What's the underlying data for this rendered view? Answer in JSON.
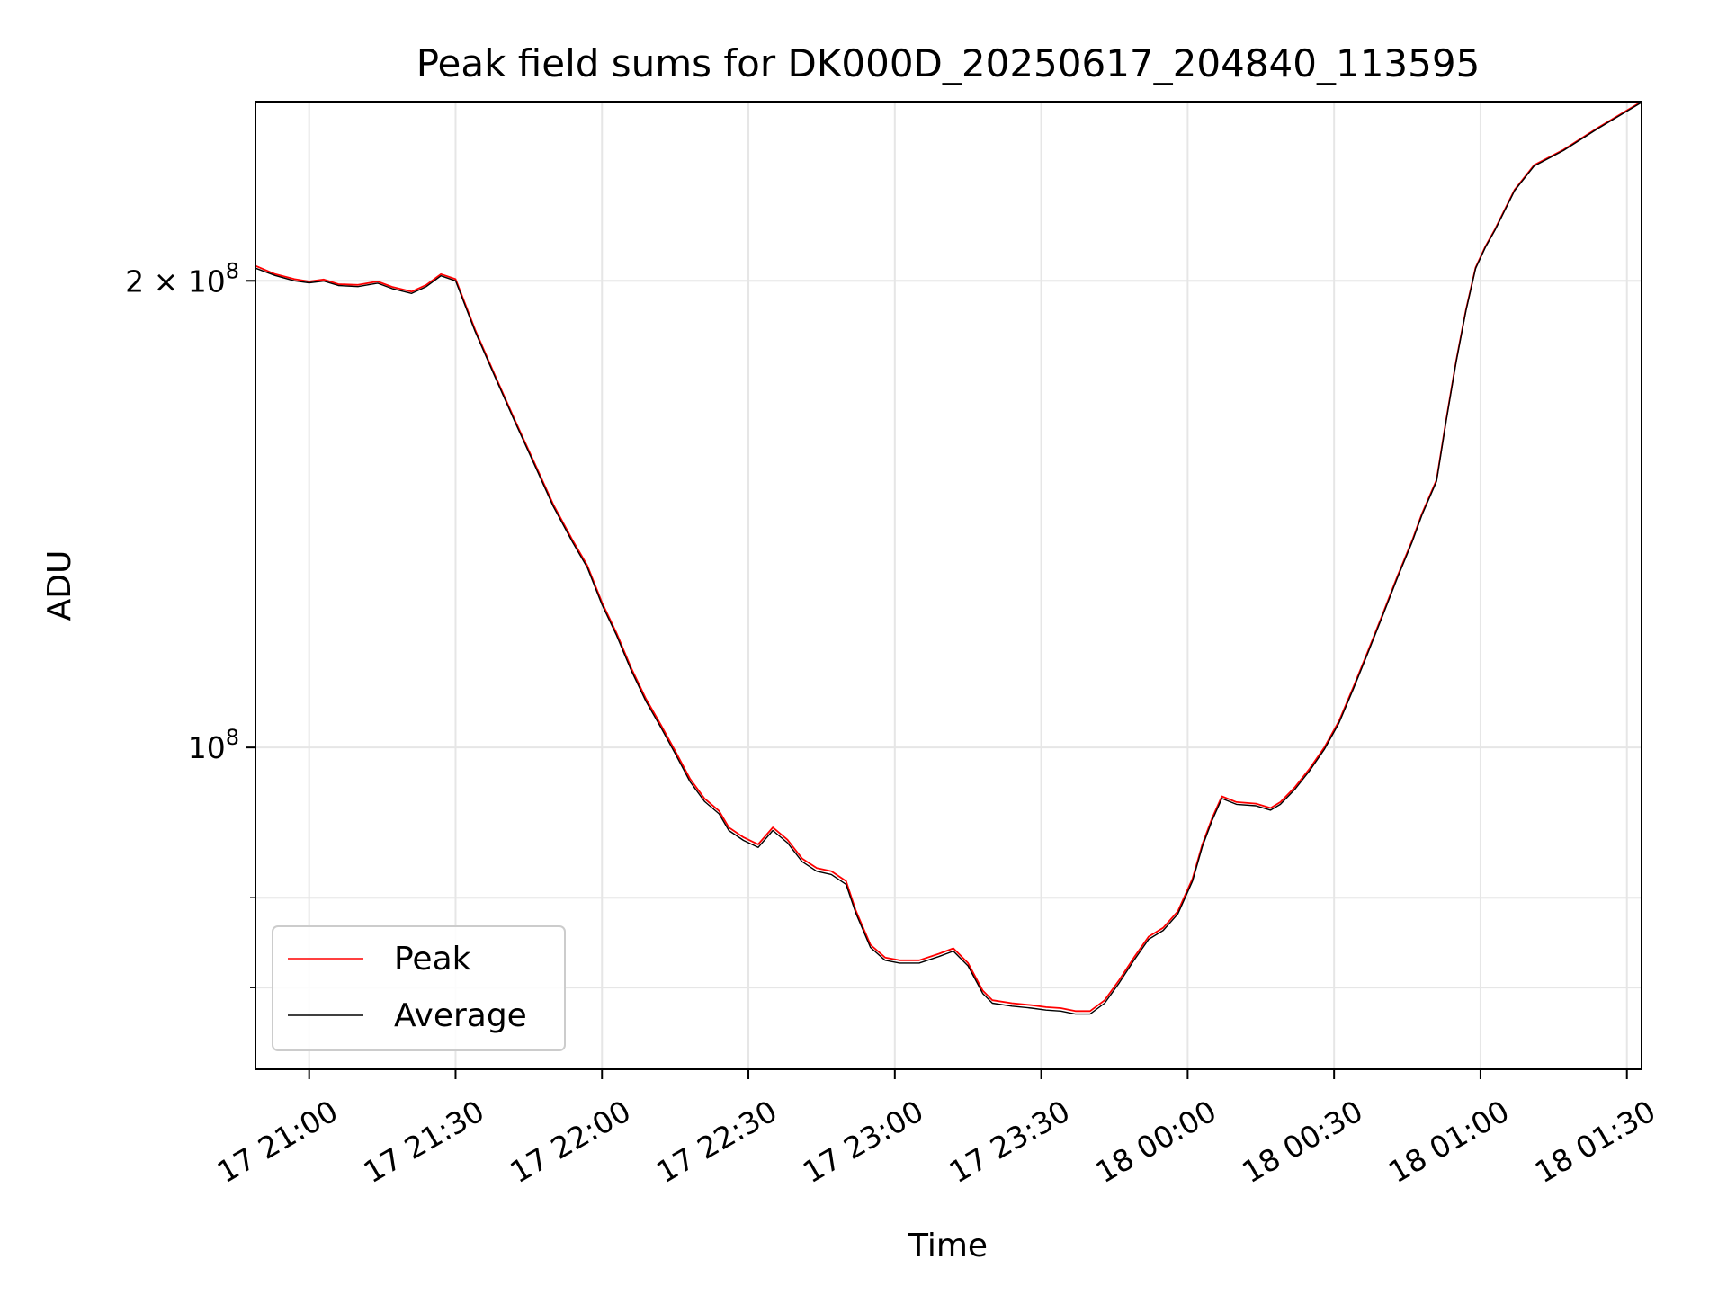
{
  "chart_data": {
    "type": "line",
    "title": "Peak field sums for DK000D_20250617_204840_113595",
    "xlabel": "Time",
    "ylabel": "ADU",
    "yscale": "log",
    "xlim": [
      "2025-06-17 20:49",
      "2025-06-18 01:33"
    ],
    "ylim": [
      62000000,
      261000000
    ],
    "grid": true,
    "legend_position": "lower-left",
    "x_ticks": [
      {
        "t": "2025-06-17 21:00",
        "label": "17 21:00"
      },
      {
        "t": "2025-06-17 21:30",
        "label": "17 21:30"
      },
      {
        "t": "2025-06-17 22:00",
        "label": "17 22:00"
      },
      {
        "t": "2025-06-17 22:30",
        "label": "17 22:30"
      },
      {
        "t": "2025-06-17 23:00",
        "label": "17 23:00"
      },
      {
        "t": "2025-06-17 23:30",
        "label": "17 23:30"
      },
      {
        "t": "2025-06-18 00:00",
        "label": "18 00:00"
      },
      {
        "t": "2025-06-18 00:30",
        "label": "18 00:30"
      },
      {
        "t": "2025-06-18 01:00",
        "label": "18 01:00"
      },
      {
        "t": "2025-06-18 01:30",
        "label": "18 01:30"
      }
    ],
    "y_major_ticks": [
      {
        "value": 100000000,
        "base": "10",
        "exp": "8",
        "coef": ""
      },
      {
        "value": 200000000,
        "base": "10",
        "exp": "8",
        "coef": "2 × "
      }
    ],
    "y_minor_ticks": [
      70000000,
      80000000
    ],
    "series": [
      {
        "name": "Peak",
        "color": "#ff0000",
        "points": [
          [
            "2025-06-17 20:49",
            204500000
          ],
          [
            "2025-06-17 20:53",
            202000000
          ],
          [
            "2025-06-17 20:57",
            200500000
          ],
          [
            "2025-06-17 21:00",
            199800000
          ],
          [
            "2025-06-17 21:03",
            200400000
          ],
          [
            "2025-06-17 21:06",
            199000000
          ],
          [
            "2025-06-17 21:10",
            198800000
          ],
          [
            "2025-06-17 21:14",
            199800000
          ],
          [
            "2025-06-17 21:17",
            198200000
          ],
          [
            "2025-06-17 21:21",
            196800000
          ],
          [
            "2025-06-17 21:24",
            198800000
          ],
          [
            "2025-06-17 21:27",
            202000000
          ],
          [
            "2025-06-17 21:30",
            200500000
          ],
          [
            "2025-06-17 21:34",
            186000000
          ],
          [
            "2025-06-17 21:38",
            174000000
          ],
          [
            "2025-06-17 21:42",
            163000000
          ],
          [
            "2025-06-17 21:46",
            153000000
          ],
          [
            "2025-06-17 21:50",
            143500000
          ],
          [
            "2025-06-17 21:54",
            136000000
          ],
          [
            "2025-06-17 21:57",
            131000000
          ],
          [
            "2025-06-17 22:00",
            124000000
          ],
          [
            "2025-06-17 22:03",
            118500000
          ],
          [
            "2025-06-17 22:06",
            112500000
          ],
          [
            "2025-06-17 22:09",
            107500000
          ],
          [
            "2025-06-17 22:12",
            103500000
          ],
          [
            "2025-06-17 22:15",
            99500000
          ],
          [
            "2025-06-17 22:18",
            95500000
          ],
          [
            "2025-06-17 22:21",
            92700000
          ],
          [
            "2025-06-17 22:24",
            91000000
          ],
          [
            "2025-06-17 22:26",
            88800000
          ],
          [
            "2025-06-17 22:29",
            87500000
          ],
          [
            "2025-06-17 22:32",
            86600000
          ],
          [
            "2025-06-17 22:35",
            88800000
          ],
          [
            "2025-06-17 22:38",
            87200000
          ],
          [
            "2025-06-17 22:41",
            84800000
          ],
          [
            "2025-06-17 22:44",
            83600000
          ],
          [
            "2025-06-17 22:47",
            83200000
          ],
          [
            "2025-06-17 22:50",
            82000000
          ],
          [
            "2025-06-17 22:52",
            78500000
          ],
          [
            "2025-06-17 22:55",
            74600000
          ],
          [
            "2025-06-17 22:58",
            73200000
          ],
          [
            "2025-06-17 23:01",
            72900000
          ],
          [
            "2025-06-17 23:05",
            72900000
          ],
          [
            "2025-06-17 23:09",
            73600000
          ],
          [
            "2025-06-17 23:12",
            74200000
          ],
          [
            "2025-06-17 23:15",
            72600000
          ],
          [
            "2025-06-17 23:18",
            69700000
          ],
          [
            "2025-06-17 23:20",
            68700000
          ],
          [
            "2025-06-17 23:24",
            68400000
          ],
          [
            "2025-06-17 23:28",
            68200000
          ],
          [
            "2025-06-17 23:31",
            68000000
          ],
          [
            "2025-06-17 23:34",
            67900000
          ],
          [
            "2025-06-17 23:37",
            67600000
          ],
          [
            "2025-06-17 23:40",
            67600000
          ],
          [
            "2025-06-17 23:43",
            68700000
          ],
          [
            "2025-06-17 23:46",
            70800000
          ],
          [
            "2025-06-17 23:49",
            73200000
          ],
          [
            "2025-06-17 23:52",
            75500000
          ],
          [
            "2025-06-17 23:55",
            76500000
          ],
          [
            "2025-06-17 23:58",
            78400000
          ],
          [
            "2025-06-18 00:01",
            82300000
          ],
          [
            "2025-06-18 00:03",
            86600000
          ],
          [
            "2025-06-18 00:05",
            90000000
          ],
          [
            "2025-06-18 00:07",
            93000000
          ],
          [
            "2025-06-18 00:10",
            92200000
          ],
          [
            "2025-06-18 00:14",
            92000000
          ],
          [
            "2025-06-18 00:17",
            91400000
          ],
          [
            "2025-06-18 00:19",
            92200000
          ],
          [
            "2025-06-18 00:22",
            94300000
          ],
          [
            "2025-06-18 00:25",
            96900000
          ],
          [
            "2025-06-18 00:28",
            100000000
          ],
          [
            "2025-06-18 00:31",
            104000000
          ],
          [
            "2025-06-18 00:34",
            109500000
          ],
          [
            "2025-06-18 00:37",
            115500000
          ],
          [
            "2025-06-18 00:40",
            122000000
          ],
          [
            "2025-06-18 00:43",
            129000000
          ],
          [
            "2025-06-18 00:46",
            136000000
          ],
          [
            "2025-06-18 00:48",
            141500000
          ],
          [
            "2025-06-18 00:51",
            148800000
          ],
          [
            "2025-06-18 00:53",
            163000000
          ],
          [
            "2025-06-18 00:55",
            177500000
          ],
          [
            "2025-06-18 00:57",
            191500000
          ],
          [
            "2025-06-18 00:59",
            204000000
          ],
          [
            "2025-06-18 01:01",
            210500000
          ],
          [
            "2025-06-18 01:03",
            216000000
          ],
          [
            "2025-06-18 01:07",
            229000000
          ],
          [
            "2025-06-18 01:11",
            237500000
          ],
          [
            "2025-06-18 01:17",
            243000000
          ],
          [
            "2025-06-18 01:24",
            251000000
          ],
          [
            "2025-06-18 01:33",
            261000000
          ]
        ]
      },
      {
        "name": "Average",
        "color": "#000000",
        "points": [
          [
            "2025-06-17 20:49",
            203800000
          ],
          [
            "2025-06-17 20:53",
            201600000
          ],
          [
            "2025-06-17 20:57",
            200000000
          ],
          [
            "2025-06-17 21:00",
            199400000
          ],
          [
            "2025-06-17 21:03",
            199900000
          ],
          [
            "2025-06-17 21:06",
            198600000
          ],
          [
            "2025-06-17 21:10",
            198300000
          ],
          [
            "2025-06-17 21:14",
            199300000
          ],
          [
            "2025-06-17 21:17",
            197700000
          ],
          [
            "2025-06-17 21:21",
            196300000
          ],
          [
            "2025-06-17 21:24",
            198300000
          ],
          [
            "2025-06-17 21:27",
            201500000
          ],
          [
            "2025-06-17 21:30",
            200000000
          ],
          [
            "2025-06-17 21:34",
            185500000
          ],
          [
            "2025-06-17 21:38",
            173600000
          ],
          [
            "2025-06-17 21:42",
            162600000
          ],
          [
            "2025-06-17 21:46",
            152600000
          ],
          [
            "2025-06-17 21:50",
            143100000
          ],
          [
            "2025-06-17 21:54",
            135600000
          ],
          [
            "2025-06-17 21:57",
            130600000
          ],
          [
            "2025-06-17 22:00",
            123600000
          ],
          [
            "2025-06-17 22:03",
            118100000
          ],
          [
            "2025-06-17 22:06",
            112100000
          ],
          [
            "2025-06-17 22:09",
            107100000
          ],
          [
            "2025-06-17 22:12",
            103100000
          ],
          [
            "2025-06-17 22:15",
            99100000
          ],
          [
            "2025-06-17 22:18",
            95100000
          ],
          [
            "2025-06-17 22:21",
            92300000
          ],
          [
            "2025-06-17 22:24",
            90600000
          ],
          [
            "2025-06-17 22:26",
            88400000
          ],
          [
            "2025-06-17 22:29",
            87100000
          ],
          [
            "2025-06-17 22:32",
            86200000
          ],
          [
            "2025-06-17 22:35",
            88400000
          ],
          [
            "2025-06-17 22:38",
            86800000
          ],
          [
            "2025-06-17 22:41",
            84400000
          ],
          [
            "2025-06-17 22:44",
            83200000
          ],
          [
            "2025-06-17 22:47",
            82800000
          ],
          [
            "2025-06-17 22:50",
            81600000
          ],
          [
            "2025-06-17 22:52",
            78200000
          ],
          [
            "2025-06-17 22:55",
            74300000
          ],
          [
            "2025-06-17 22:58",
            72900000
          ],
          [
            "2025-06-17 23:01",
            72600000
          ],
          [
            "2025-06-17 23:05",
            72600000
          ],
          [
            "2025-06-17 23:09",
            73300000
          ],
          [
            "2025-06-17 23:12",
            73900000
          ],
          [
            "2025-06-17 23:15",
            72300000
          ],
          [
            "2025-06-17 23:18",
            69400000
          ],
          [
            "2025-06-17 23:20",
            68400000
          ],
          [
            "2025-06-17 23:24",
            68100000
          ],
          [
            "2025-06-17 23:28",
            67900000
          ],
          [
            "2025-06-17 23:31",
            67700000
          ],
          [
            "2025-06-17 23:34",
            67600000
          ],
          [
            "2025-06-17 23:37",
            67300000
          ],
          [
            "2025-06-17 23:40",
            67300000
          ],
          [
            "2025-06-17 23:43",
            68400000
          ],
          [
            "2025-06-17 23:46",
            70500000
          ],
          [
            "2025-06-17 23:49",
            72900000
          ],
          [
            "2025-06-17 23:52",
            75200000
          ],
          [
            "2025-06-17 23:55",
            76200000
          ],
          [
            "2025-06-17 23:58",
            78100000
          ],
          [
            "2025-06-18 00:01",
            82000000
          ],
          [
            "2025-06-18 00:03",
            86300000
          ],
          [
            "2025-06-18 00:05",
            89700000
          ],
          [
            "2025-06-18 00:07",
            92700000
          ],
          [
            "2025-06-18 00:10",
            91900000
          ],
          [
            "2025-06-18 00:14",
            91700000
          ],
          [
            "2025-06-18 00:17",
            91100000
          ],
          [
            "2025-06-18 00:19",
            91900000
          ],
          [
            "2025-06-18 00:22",
            94000000
          ],
          [
            "2025-06-18 00:25",
            96600000
          ],
          [
            "2025-06-18 00:28",
            99700000
          ],
          [
            "2025-06-18 00:31",
            103700000
          ],
          [
            "2025-06-18 00:34",
            109200000
          ],
          [
            "2025-06-18 00:37",
            115200000
          ],
          [
            "2025-06-18 00:40",
            121700000
          ],
          [
            "2025-06-18 00:43",
            128700000
          ],
          [
            "2025-06-18 00:46",
            135700000
          ],
          [
            "2025-06-18 00:48",
            141200000
          ],
          [
            "2025-06-18 00:51",
            148500000
          ],
          [
            "2025-06-18 00:53",
            162700000
          ],
          [
            "2025-06-18 00:55",
            177200000
          ],
          [
            "2025-06-18 00:57",
            191200000
          ],
          [
            "2025-06-18 00:59",
            203700000
          ],
          [
            "2025-06-18 01:01",
            210200000
          ],
          [
            "2025-06-18 01:03",
            215700000
          ],
          [
            "2025-06-18 01:07",
            228700000
          ],
          [
            "2025-06-18 01:11",
            237200000
          ],
          [
            "2025-06-18 01:17",
            242700000
          ],
          [
            "2025-06-18 01:24",
            250700000
          ],
          [
            "2025-06-18 01:33",
            260700000
          ]
        ]
      }
    ]
  }
}
